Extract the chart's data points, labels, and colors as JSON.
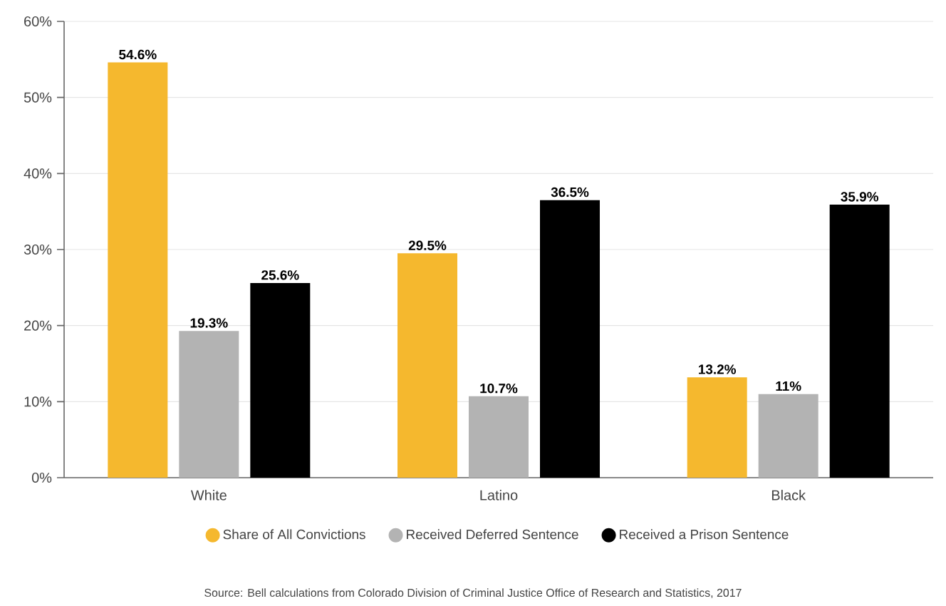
{
  "chart_data": {
    "type": "bar",
    "categories": [
      "White",
      "Latino",
      "Black"
    ],
    "series": [
      {
        "name": "Share of All Convictions",
        "color": "#f5b82e",
        "values": [
          54.6,
          29.5,
          13.2
        ],
        "value_labels": [
          "54.6%",
          "29.5%",
          "13.2%"
        ]
      },
      {
        "name": "Received Deferred Sentence",
        "color": "#b3b3b3",
        "values": [
          19.3,
          10.7,
          11
        ],
        "value_labels": [
          "19.3%",
          "10.7%",
          "11%"
        ]
      },
      {
        "name": "Received a Prison Sentence",
        "color": "#000000",
        "values": [
          25.6,
          36.5,
          35.9
        ],
        "value_labels": [
          "25.6%",
          "36.5%",
          "35.9%"
        ]
      }
    ],
    "ylim": [
      0,
      60
    ],
    "yticks": [
      {
        "value": 0,
        "label": "0%"
      },
      {
        "value": 10,
        "label": "10%"
      },
      {
        "value": 20,
        "label": "20%"
      },
      {
        "value": 30,
        "label": "30%"
      },
      {
        "value": 40,
        "label": "40%"
      },
      {
        "value": 50,
        "label": "50%"
      },
      {
        "value": 60,
        "label": "60%"
      }
    ],
    "grid": "y",
    "legend": "bottom",
    "annotations": [
      "Source: Bell calculations from Colorado Division of Criminal Justice Office of Research and Statistics, 2017"
    ]
  }
}
